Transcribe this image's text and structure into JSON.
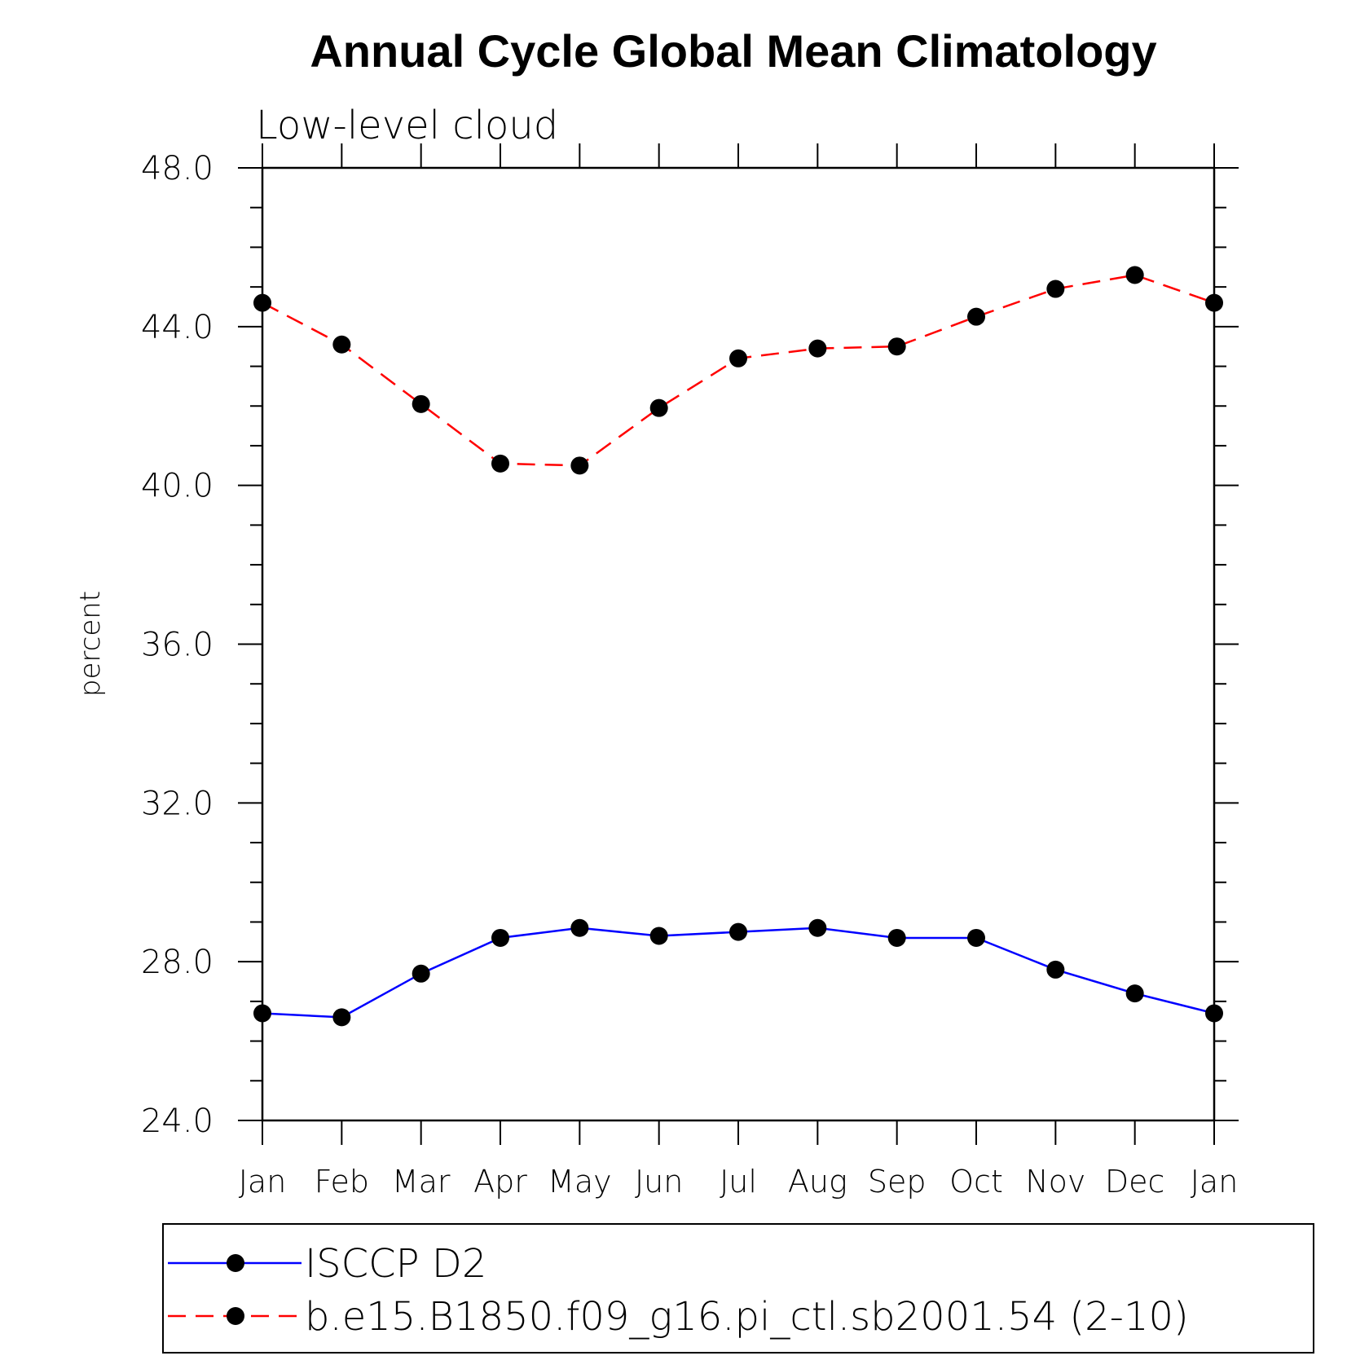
{
  "chart_data": {
    "type": "line",
    "title": "Annual Cycle Global Mean Climatology",
    "subtitle": "Low-level cloud",
    "ylabel": "percent",
    "xlabel": "",
    "ylim": [
      24.0,
      48.0
    ],
    "yticks": [
      "24.0",
      "28.0",
      "32.0",
      "36.0",
      "40.0",
      "44.0",
      "48.0"
    ],
    "categories": [
      "Jan",
      "Feb",
      "Mar",
      "Apr",
      "May",
      "Jun",
      "Jul",
      "Aug",
      "Sep",
      "Oct",
      "Nov",
      "Dec",
      "Jan"
    ],
    "legend_position": "bottom",
    "series": [
      {
        "name": "ISCCP D2",
        "color": "#0000ff",
        "dash": "solid",
        "marker": "circle",
        "values": [
          26.7,
          26.6,
          27.7,
          28.6,
          28.85,
          28.65,
          28.75,
          28.85,
          28.6,
          28.6,
          27.8,
          27.2,
          26.7
        ]
      },
      {
        "name": "b.e15.B1850.f09_g16.pi_ctl.sb2001.54 (2-10)",
        "color": "#ff0000",
        "dash": "dashed",
        "marker": "circle",
        "values": [
          44.6,
          43.55,
          42.05,
          40.55,
          40.5,
          41.95,
          43.2,
          43.45,
          43.5,
          44.25,
          44.95,
          45.3,
          44.6
        ]
      }
    ]
  }
}
